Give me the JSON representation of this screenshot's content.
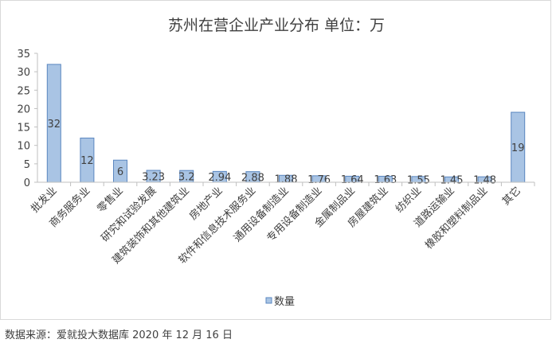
{
  "chart_data": {
    "type": "bar",
    "title": "苏州在营企业产业分布 单位：万",
    "categories": [
      "批发业",
      "商务服务业",
      "零售业",
      "研究和试验发展",
      "建筑装饰和其他建筑业",
      "房地产业",
      "软件和信息技术服务业",
      "通用设备制造业",
      "专用设备制造业",
      "金属制品业",
      "房屋建筑业",
      "纺织业",
      "道路运输业",
      "橡胶和塑料制品业",
      "其它"
    ],
    "series": [
      {
        "name": "数量",
        "values": [
          32,
          12,
          6,
          3.23,
          3.2,
          2.94,
          2.88,
          1.88,
          1.76,
          1.64,
          1.63,
          1.55,
          1.45,
          1.48,
          19
        ]
      }
    ],
    "data_labels": [
      "32",
      "12",
      "6",
      "3.23",
      "3.2",
      "2.94",
      "2.88",
      "1.88",
      "1.76",
      "1.64",
      "1.63",
      "1.55",
      "1.45",
      "1.48",
      "19"
    ],
    "y_ticks": [
      "0",
      "5",
      "10",
      "15",
      "20",
      "25",
      "30",
      "35"
    ],
    "ylim": [
      0,
      35
    ],
    "grid": false,
    "legend_position": "bottom",
    "colors": {
      "bar_fill": "#a9c4e4",
      "bar_stroke": "#5b87c0",
      "axis": "#bfbfbf",
      "text": "#404040"
    }
  },
  "source_note": "数据来源：爱就投大数据库  2020 年 12 月 16 日"
}
